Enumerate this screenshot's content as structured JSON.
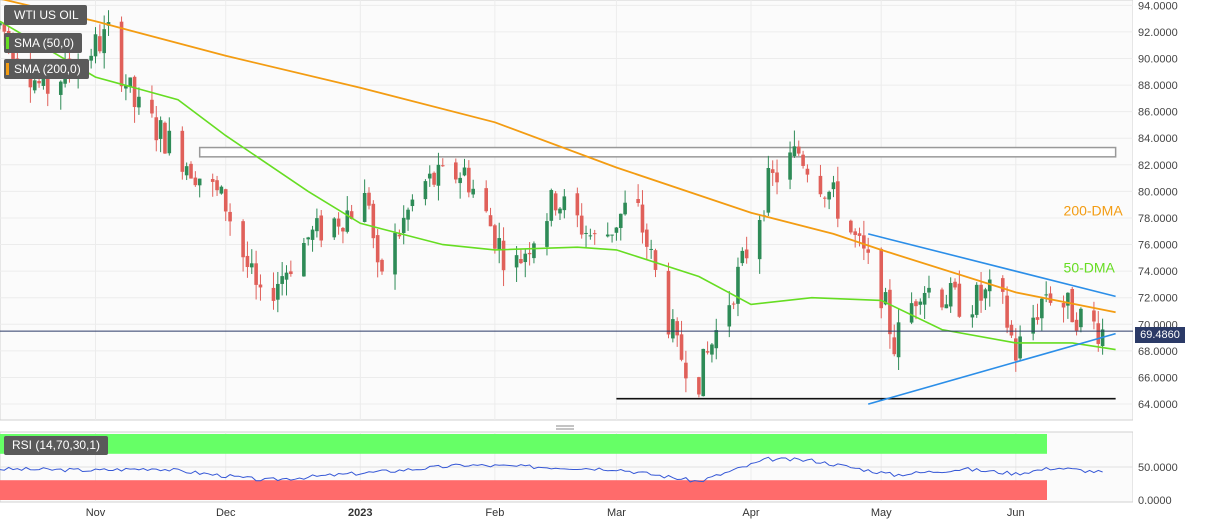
{
  "instrument": "WTI US OIL",
  "legends": [
    {
      "label": "SMA (50,0)",
      "color": "#66dd22"
    },
    {
      "label": "SMA (200,0)",
      "color": "#f39c12"
    }
  ],
  "rsi_label": "RSI (14,70,30,1)",
  "last_price_label": "69.4860",
  "annotations": {
    "dma200": "200-DMA",
    "dma50": "50-DMA"
  },
  "colors": {
    "up": "#2e8b57",
    "down": "#e0605a",
    "sma50": "#66dd22",
    "sma200": "#f39c12",
    "trend": "#2b8ee8",
    "rsi_overbought": "#66ff66",
    "rsi_oversold": "#ff6b6b",
    "rsi_line": "#3557d6"
  },
  "chart_data": [
    {
      "type": "candlestick",
      "title": "WTI US OIL",
      "x_ticks": [
        "Nov",
        "Dec",
        "2023",
        "Feb",
        "Mar",
        "Apr",
        "May",
        "Jun"
      ],
      "y_ticks": [
        "64.0000",
        "66.0000",
        "68.0000",
        "70.0000",
        "72.0000",
        "74.0000",
        "76.0000",
        "78.0000",
        "80.0000",
        "82.0000",
        "84.0000",
        "86.0000",
        "88.0000",
        "90.0000",
        "92.0000",
        "94.0000"
      ],
      "ylim": [
        62.8,
        94.4
      ],
      "x_range": [
        "2022-10-10",
        "2023-06-28"
      ],
      "last_price": 69.486,
      "sma50_label": "SMA (50,0)",
      "sma200_label": "SMA (200,0)",
      "sma200": [
        [
          "2022-10-10",
          94.5
        ],
        [
          "2022-11-01",
          92.8
        ],
        [
          "2022-12-01",
          90.2
        ],
        [
          "2023-01-01",
          87.8
        ],
        [
          "2023-02-01",
          85.2
        ],
        [
          "2023-03-01",
          81.8
        ],
        [
          "2023-04-01",
          78.4
        ],
        [
          "2023-04-20",
          76.8
        ],
        [
          "2023-05-01",
          75.6
        ],
        [
          "2023-06-01",
          72.4
        ],
        [
          "2023-06-24",
          70.9
        ]
      ],
      "sma50": [
        [
          "2022-10-10",
          92.8
        ],
        [
          "2022-11-01",
          88.6
        ],
        [
          "2022-11-20",
          86.9
        ],
        [
          "2022-12-01",
          84.2
        ],
        [
          "2022-12-20",
          80.0
        ],
        [
          "2023-01-01",
          77.6
        ],
        [
          "2023-01-20",
          76.0
        ],
        [
          "2023-02-01",
          75.6
        ],
        [
          "2023-02-20",
          75.8
        ],
        [
          "2023-03-01",
          75.6
        ],
        [
          "2023-03-20",
          73.6
        ],
        [
          "2023-04-01",
          71.5
        ],
        [
          "2023-04-15",
          72.0
        ],
        [
          "2023-05-01",
          71.8
        ],
        [
          "2023-05-15",
          69.6
        ],
        [
          "2023-06-01",
          68.6
        ],
        [
          "2023-06-14",
          68.6
        ],
        [
          "2023-06-24",
          68.1
        ]
      ],
      "resistance_zone": {
        "start": "2022-11-25",
        "end": "2023-06-24",
        "low": 82.6,
        "high": 83.3
      },
      "support_line": {
        "start": "2023-03-01",
        "end": "2023-06-24",
        "value": 64.4
      },
      "upper_trendline": [
        [
          "2023-04-28",
          76.8
        ],
        [
          "2023-06-24",
          72.1
        ]
      ],
      "lower_trendline": [
        [
          "2023-04-28",
          64.0
        ],
        [
          "2023-06-24",
          69.3
        ]
      ],
      "labels": [
        {
          "text": "200-DMA",
          "x": "2023-06-12",
          "y": 78.2
        },
        {
          "text": "50-DMA",
          "x": "2023-06-12",
          "y": 73.9
        }
      ],
      "candles_anchor": [
        [
          "2022-10-10",
          92.5
        ],
        [
          "2022-10-20",
          87.5
        ],
        [
          "2022-11-04",
          91.8
        ],
        [
          "2022-11-10",
          86.5
        ],
        [
          "2022-11-20",
          83.0
        ],
        [
          "2022-12-01",
          79.0
        ],
        [
          "2022-12-09",
          71.5
        ],
        [
          "2022-12-20",
          76.5
        ],
        [
          "2023-01-03",
          79.5
        ],
        [
          "2023-01-05",
          73.5
        ],
        [
          "2023-01-15",
          80.5
        ],
        [
          "2023-01-25",
          81.5
        ],
        [
          "2023-02-05",
          74.0
        ],
        [
          "2023-02-15",
          79.5
        ],
        [
          "2023-02-25",
          76.0
        ],
        [
          "2023-03-05",
          79.5
        ],
        [
          "2023-03-15",
          68.0
        ],
        [
          "2023-03-20",
          66.0
        ],
        [
          "2023-03-30",
          74.5
        ],
        [
          "2023-04-05",
          80.5
        ],
        [
          "2023-04-12",
          83.0
        ],
        [
          "2023-04-20",
          79.5
        ],
        [
          "2023-05-01",
          72.5
        ],
        [
          "2023-05-04",
          68.5
        ],
        [
          "2023-05-10",
          73.0
        ],
        [
          "2023-05-20",
          71.5
        ],
        [
          "2023-05-28",
          72.5
        ],
        [
          "2023-06-01",
          67.8
        ],
        [
          "2023-06-08",
          72.5
        ],
        [
          "2023-06-16",
          70.5
        ],
        [
          "2023-06-21",
          69.5
        ]
      ]
    },
    {
      "type": "line",
      "title": "RSI (14,70,30,1)",
      "y_ticks": [
        "0.0000",
        "50.0000"
      ],
      "ylim": [
        0,
        100
      ],
      "overbought": 70,
      "oversold": 30,
      "values_anchor": [
        [
          "2022-10-10",
          47
        ],
        [
          "2022-11-01",
          45
        ],
        [
          "2022-11-15",
          48
        ],
        [
          "2022-12-10",
          30
        ],
        [
          "2023-01-10",
          45
        ],
        [
          "2023-01-25",
          53
        ],
        [
          "2023-03-01",
          47
        ],
        [
          "2023-03-20",
          28
        ],
        [
          "2023-04-05",
          62
        ],
        [
          "2023-04-15",
          60
        ],
        [
          "2023-05-04",
          38
        ],
        [
          "2023-05-20",
          47
        ],
        [
          "2023-06-01",
          40
        ],
        [
          "2023-06-10",
          49
        ],
        [
          "2023-06-21",
          42
        ]
      ]
    }
  ]
}
